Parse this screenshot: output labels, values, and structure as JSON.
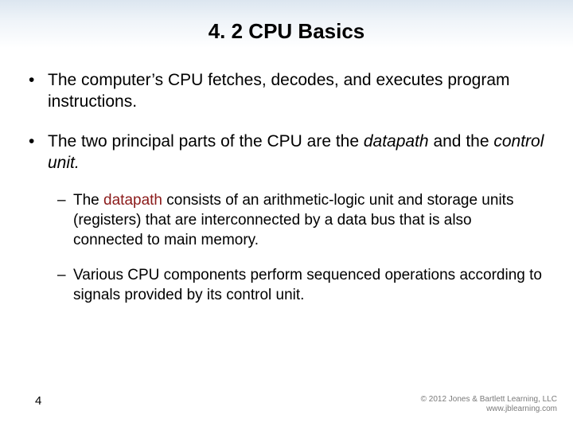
{
  "colors": {
    "background": "#ffffff",
    "gradient_top": "#dce6f0",
    "gradient_mid": "#eef3f8",
    "gradient_bottom": "#ffffff",
    "text": "#000000",
    "datapath_term": "#8b1a1a",
    "footer_text": "#7a7a7a"
  },
  "typography": {
    "title_fontsize": 26,
    "body_fontsize": 21,
    "sub_fontsize": 19,
    "footer_fontsize": 10,
    "page_number_fontsize": 15,
    "font_family": "Arial"
  },
  "title": "4. 2 CPU Basics",
  "bullets": [
    {
      "level": 1,
      "marker": "•",
      "runs": [
        {
          "text": "The computer’s CPU fetches, decodes, and executes program instructions."
        }
      ]
    },
    {
      "level": 1,
      "marker": "•",
      "runs": [
        {
          "text": "The two principal parts of the CPU are the "
        },
        {
          "text": "datapath",
          "italic": true
        },
        {
          "text": " and the "
        },
        {
          "text": "control unit.",
          "italic": true
        }
      ]
    },
    {
      "level": 2,
      "marker": "–",
      "runs": [
        {
          "text": "The "
        },
        {
          "text": "datapath",
          "color": "#8b1a1a"
        },
        {
          "text": " consists of an arithmetic-logic unit and storage units (registers) that are interconnected by a data bus that is also connected to main memory."
        }
      ]
    },
    {
      "level": 2,
      "marker": "–",
      "runs": [
        {
          "text": "Various CPU components perform sequenced operations according to signals provided by its control unit."
        }
      ]
    }
  ],
  "page_number": "4",
  "footer": {
    "line1": "© 2012 Jones & Bartlett Learning, LLC",
    "line2": "www.jblearning.com"
  }
}
